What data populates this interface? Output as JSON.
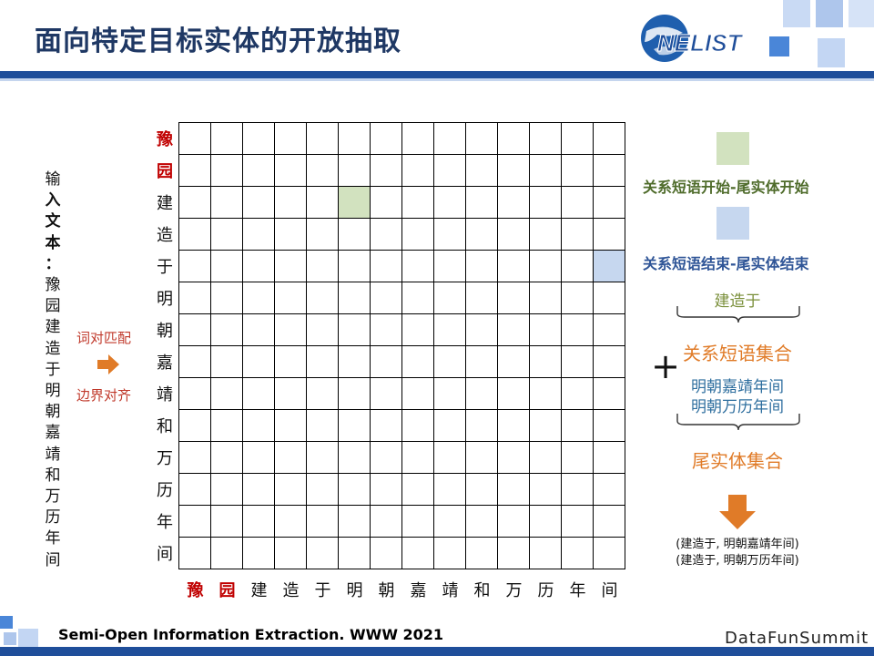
{
  "slide": {
    "title": "面向特定目标实体的开放抽取",
    "logo_text": "NELIST"
  },
  "input_text": {
    "prefix": "输",
    "bold_part": [
      "入",
      "文",
      "本",
      "："
    ],
    "chars": [
      "豫",
      "园",
      "建",
      "造",
      "于",
      "明",
      "朝",
      "嘉",
      "靖",
      "和",
      "万",
      "历",
      "年",
      "间"
    ]
  },
  "matching": {
    "label_top": "词对匹配",
    "label_bottom": "边界对齐"
  },
  "grid": {
    "tokens": [
      "豫",
      "园",
      "建",
      "造",
      "于",
      "明",
      "朝",
      "嘉",
      "靖",
      "和",
      "万",
      "历",
      "年",
      "间"
    ],
    "target_entity_tokens": 2,
    "highlights": [
      {
        "row": 2,
        "col": 5,
        "color": "#d2e2bf"
      },
      {
        "row": 4,
        "col": 13,
        "color": "#c6d7ef"
      }
    ]
  },
  "legend": {
    "start_label": "关系短语开始-尾实体开始",
    "start_color": "#d2e2bf",
    "end_label": "关系短语结束-尾实体结束",
    "end_color": "#c6d7ef"
  },
  "result": {
    "relation_phrase": "建造于",
    "relation_set_label": "关系短语集合",
    "plus": "+",
    "tail_entity_1": "明朝嘉靖年间",
    "tail_entity_2": "明朝万历年间",
    "tail_set_label": "尾实体集合",
    "output_1": "(建造于, 明朝嘉靖年间)",
    "output_2": "(建造于, 明朝万历年间)"
  },
  "footer": {
    "citation": "Semi-Open Information Extraction. WWW 2021",
    "brand": "DataFunSummit"
  },
  "colors": {
    "title": "#1f3864",
    "accent_red": "#c00000",
    "orange": "#e07b28",
    "legend_green_text": "#4e6b2a",
    "legend_blue_text": "#2f5597",
    "bar_blue": "#1f4e9a"
  }
}
